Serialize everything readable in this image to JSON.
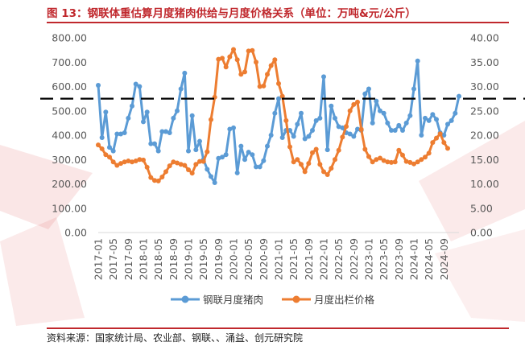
{
  "title": "图 13：钢联体重估算月度猪肉供给与月度价格关系（单位：万吨&元/公斤）",
  "source": "资料来源：国家统计局、农业部、钢联、、涌益、创元研究院",
  "colors": {
    "title": "#c0282d",
    "series1": "#5b9bd5",
    "series2": "#ed7d31",
    "dashed_line": "#000000",
    "watermark": "#d9302e"
  },
  "chart_data": {
    "type": "line",
    "xlabel": "",
    "ylabel_left": "",
    "ylabel_right": "",
    "ylim_left": [
      0,
      800
    ],
    "ylim_right": [
      0,
      40
    ],
    "yticks_left": [
      "0.00",
      "100.00",
      "200.00",
      "300.00",
      "400.00",
      "500.00",
      "600.00",
      "700.00",
      "800.00"
    ],
    "yticks_right": [
      "0.00",
      "5.00",
      "10.00",
      "15.00",
      "20.00",
      "25.00",
      "30.00",
      "35.00",
      "40.00"
    ],
    "xticks": [
      "2017-01",
      "2017-05",
      "2017-09",
      "2018-01",
      "2018-05",
      "2018-09",
      "2019-01",
      "2019-05",
      "2019-09",
      "2020-01",
      "2020-05",
      "2020-09",
      "2021-01",
      "2021-05",
      "2021-09",
      "2022-01",
      "2022-05",
      "2022-09",
      "2023-01",
      "2023-05",
      "2023-09",
      "2024-01",
      "2024-05",
      "2024-09"
    ],
    "start_month": "2017-01",
    "legend_position": "bottom",
    "grid": false,
    "reference_line_right_axis": 27.5,
    "series": [
      {
        "name": "钢联月度猪肉",
        "axis": "left",
        "values": [
          605,
          390,
          495,
          350,
          335,
          405,
          405,
          410,
          470,
          520,
          610,
          600,
          455,
          495,
          365,
          365,
          335,
          415,
          415,
          410,
          470,
          500,
          590,
          655,
          335,
          480,
          340,
          375,
          300,
          260,
          230,
          205,
          305,
          310,
          320,
          425,
          430,
          245,
          355,
          300,
          330,
          320,
          270,
          270,
          295,
          355,
          400,
          490,
          550,
          390,
          420,
          420,
          395,
          445,
          490,
          385,
          395,
          420,
          460,
          470,
          640,
          340,
          520,
          470,
          435,
          430,
          410,
          405,
          395,
          425,
          420,
          570,
          590,
          450,
          540,
          500,
          490,
          450,
          420,
          420,
          440,
          420,
          450,
          480,
          590,
          705,
          400,
          470,
          460,
          485,
          465,
          410,
          400,
          445,
          460,
          490,
          560
        ]
      },
      {
        "name": "月度出栏价格",
        "axis": "right",
        "values": [
          18.0,
          17.2,
          16.0,
          15.5,
          14.5,
          13.8,
          14.2,
          14.5,
          14.7,
          14.5,
          14.7,
          15.0,
          14.9,
          13.4,
          11.3,
          10.7,
          10.6,
          11.4,
          12.5,
          13.7,
          14.5,
          14.3,
          14.0,
          13.8,
          12.9,
          12.2,
          14.0,
          14.6,
          14.6,
          16.6,
          23.2,
          27.8,
          35.6,
          35.8,
          34.0,
          36.1,
          37.6,
          35.5,
          32.5,
          33.0,
          37.3,
          37.4,
          35.0,
          30.0,
          30.1,
          32.5,
          34.3,
          35.5,
          30.6,
          28.0,
          23.0,
          17.6,
          14.5,
          15.0,
          14.0,
          12.5,
          14.2,
          16.4,
          17.1,
          14.0,
          12.5,
          11.9,
          13.2,
          15.0,
          16.9,
          19.6,
          21.8,
          25.0,
          26.3,
          26.8,
          21.2,
          17.1,
          15.6,
          14.5,
          15.0,
          15.3,
          14.8,
          14.5,
          14.4,
          14.5,
          16.9,
          15.9,
          14.6,
          14.4,
          14.1,
          14.5,
          15.0,
          15.5,
          16.3,
          18.5,
          19.4,
          20.3,
          18.5,
          17.3
        ]
      }
    ]
  }
}
